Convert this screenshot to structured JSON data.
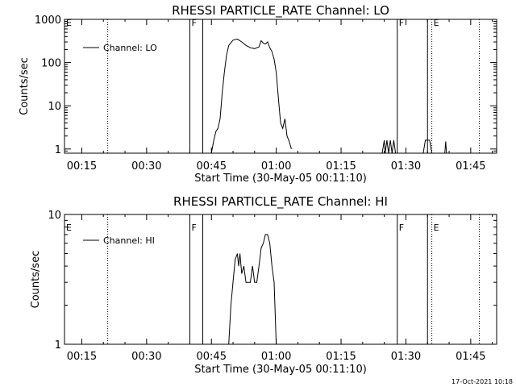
{
  "chart_data": [
    {
      "type": "line",
      "title": "RHESSI PARTICLE_RATE Channel: LO",
      "xlabel": "Start Time (30-May-05 00:11:10)",
      "ylabel": "Counts/sec",
      "yscale": "log",
      "xlim": [
        "00:11",
        "01:51"
      ],
      "ylim": [
        0.8,
        1000
      ],
      "x_ticks": [
        "00:15",
        "00:30",
        "00:45",
        "01:00",
        "01:15",
        "01:30",
        "01:45"
      ],
      "y_ticks": [
        "1",
        "10",
        "100",
        "1000"
      ],
      "legend": {
        "placement": "top-left",
        "label": "Channel: LO"
      },
      "vlines_solid": [
        "00:40",
        "00:43",
        "01:28",
        "01:35"
      ],
      "vlines_dotted": [
        "00:21",
        "01:36",
        "01:47"
      ],
      "markers": [
        {
          "label": "E",
          "x": "00:11"
        },
        {
          "label": "F",
          "x": "00:40"
        },
        {
          "label": "F",
          "x": "01:28"
        },
        {
          "label": "E",
          "x": "01:36"
        }
      ],
      "segments": [
        [
          [
            "00:45",
            0.8
          ],
          [
            "00:45.5",
            1.5
          ],
          [
            "00:46",
            2.5
          ],
          [
            "00:46.5",
            3
          ],
          [
            "00:47",
            5
          ],
          [
            "00:47.5",
            20
          ],
          [
            "00:48",
            60
          ],
          [
            "00:48.5",
            150
          ],
          [
            "00:49",
            250
          ],
          [
            "00:50",
            330
          ],
          [
            "00:51",
            350
          ],
          [
            "00:52",
            300
          ],
          [
            "00:53",
            250
          ],
          [
            "00:54",
            220
          ],
          [
            "00:55",
            210
          ],
          [
            "00:56",
            230
          ],
          [
            "00:56.5",
            320
          ],
          [
            "00:57",
            280
          ],
          [
            "00:57.5",
            270
          ],
          [
            "00:58",
            300
          ],
          [
            "00:58.5",
            220
          ],
          [
            "00:59",
            180
          ],
          [
            "00:59.5",
            120
          ],
          [
            "01:00",
            60
          ],
          [
            "01:00.5",
            15
          ],
          [
            "01:01",
            4
          ],
          [
            "01:01.5",
            3
          ],
          [
            "01:02",
            5
          ],
          [
            "01:02.5",
            2
          ],
          [
            "01:03",
            1.5
          ],
          [
            "01:03.5",
            1
          ]
        ],
        [
          [
            "01:24.5",
            0.8
          ],
          [
            "01:25",
            1.6
          ],
          [
            "01:25.2",
            0.8
          ],
          [
            "01:25.6",
            1.6
          ],
          [
            "01:26",
            0.8
          ],
          [
            "01:26.4",
            1.6
          ],
          [
            "01:26.8",
            0.8
          ],
          [
            "01:27.2",
            1.6
          ],
          [
            "01:27.6",
            0.8
          ]
        ],
        [
          [
            "01:34",
            0.8
          ],
          [
            "01:34.5",
            1.6
          ],
          [
            "01:35.5",
            1.6
          ],
          [
            "01:36",
            0.8
          ]
        ],
        [
          [
            "01:39",
            0.8
          ],
          [
            "01:39.2",
            1.5
          ],
          [
            "01:39.4",
            0.8
          ]
        ]
      ]
    },
    {
      "type": "line",
      "title": "RHESSI PARTICLE_RATE Channel: HI",
      "xlabel": "Start Time (30-May-05 00:11:10)",
      "ylabel": "Counts/sec",
      "yscale": "log",
      "xlim": [
        "00:11",
        "01:51"
      ],
      "ylim": [
        1,
        10
      ],
      "x_ticks": [
        "00:15",
        "00:30",
        "00:45",
        "01:00",
        "01:15",
        "01:30",
        "01:45"
      ],
      "y_ticks": [
        "1",
        "10"
      ],
      "legend": {
        "placement": "top-left",
        "label": "Channel: HI"
      },
      "vlines_solid": [
        "00:40",
        "00:43",
        "01:28",
        "01:35"
      ],
      "vlines_dotted": [
        "00:21",
        "01:36",
        "01:47"
      ],
      "markers": [
        {
          "label": "E",
          "x": "00:11"
        },
        {
          "label": "F",
          "x": "00:40"
        },
        {
          "label": "F",
          "x": "01:28"
        },
        {
          "label": "E",
          "x": "01:36"
        }
      ],
      "segments": [
        [
          [
            "00:49",
            1
          ],
          [
            "00:49.5",
            2
          ],
          [
            "00:50",
            3
          ],
          [
            "00:50.5",
            4.5
          ],
          [
            "00:51",
            5
          ],
          [
            "00:51.3",
            4
          ],
          [
            "00:51.6",
            5
          ],
          [
            "00:52",
            3.5
          ],
          [
            "00:52.5",
            4
          ],
          [
            "00:53",
            3
          ],
          [
            "00:54",
            3
          ],
          [
            "00:54.5",
            4
          ],
          [
            "00:55",
            3
          ],
          [
            "00:55.5",
            3
          ],
          [
            "00:56",
            4
          ],
          [
            "00:56.5",
            5.5
          ],
          [
            "00:57",
            6
          ],
          [
            "00:57.5",
            7
          ],
          [
            "00:58",
            7
          ],
          [
            "00:58.5",
            6
          ],
          [
            "00:59",
            4
          ],
          [
            "00:59.5",
            3
          ],
          [
            "01:00",
            1
          ]
        ]
      ]
    }
  ],
  "timestamp": "17-Oct-2021 10:18"
}
